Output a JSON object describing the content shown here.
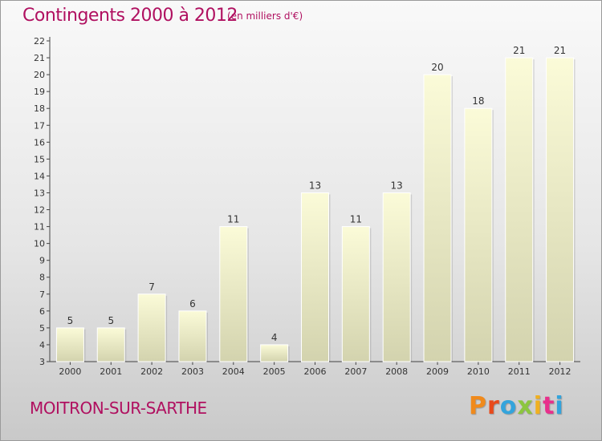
{
  "header": {
    "title": "Contingents 2000 à 2012",
    "subtitle": "(en milliers d'€)"
  },
  "footer": {
    "commune": "MOITRON-SUR-SARTHE",
    "brand": "Proxiti"
  },
  "colors": {
    "title": "#b01060",
    "bar_top": "#fbfbd8",
    "bar_bottom": "#d3d3ae",
    "brand_letters": [
      "#f08a1c",
      "#e84a1c",
      "#33a4dc",
      "#8cc63f",
      "#f0b020",
      "#e8308c",
      "#33a4dc"
    ]
  },
  "chart_data": {
    "type": "bar",
    "categories": [
      "2000",
      "2001",
      "2002",
      "2003",
      "2004",
      "2005",
      "2006",
      "2007",
      "2008",
      "2009",
      "2010",
      "2011",
      "2012"
    ],
    "values": [
      5,
      5,
      7,
      6,
      11,
      4,
      13,
      11,
      13,
      20,
      18,
      21,
      21
    ],
    "title": "Contingents 2000 à 2012",
    "subtitle": "(en milliers d'€)",
    "xlabel": "",
    "ylabel": "",
    "ylim": [
      3,
      22
    ],
    "yticks": [
      3,
      4,
      5,
      6,
      7,
      8,
      9,
      10,
      11,
      12,
      13,
      14,
      15,
      16,
      17,
      18,
      19,
      20,
      21,
      22
    ],
    "grid": false,
    "legend": "none",
    "data_labels": true
  }
}
